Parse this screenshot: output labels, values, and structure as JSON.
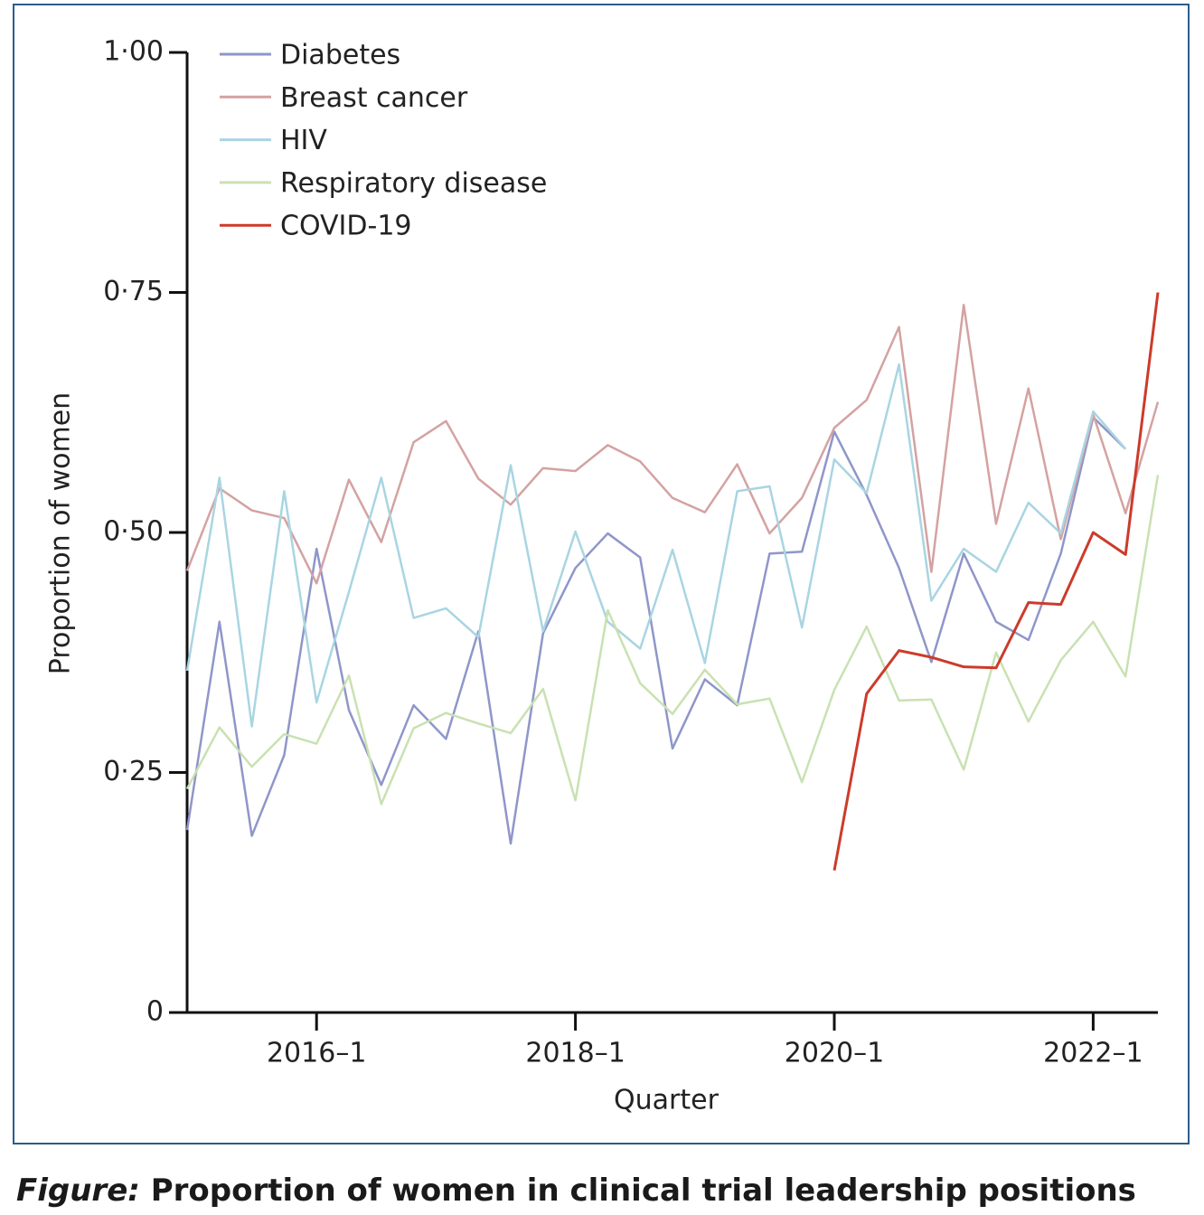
{
  "chart_data": {
    "type": "line",
    "caption_label": "Figure:",
    "caption": "Proportion of women in clinical trial leadership positions",
    "x_label": "Quarter",
    "y_label": "Proportion of women",
    "categories": [
      null,
      null,
      null,
      null,
      "2016–1",
      null,
      null,
      null,
      null,
      null,
      null,
      null,
      "2018–1",
      null,
      null,
      null,
      null,
      null,
      null,
      null,
      "2020–1",
      null,
      null,
      null,
      null,
      null,
      null,
      null,
      "2022–1",
      null,
      null
    ],
    "ylim": [
      0,
      1
    ],
    "yticks": [
      0,
      {
        "value": 0.25,
        "label": "0·25"
      },
      {
        "value": 0.5,
        "label": "0·50"
      },
      {
        "value": 0.75,
        "label": "0·75"
      },
      {
        "value": 1,
        "label": "1·00"
      }
    ],
    "legend": "upper left",
    "series": [
      {
        "name": "Diabetes",
        "color": "#8f96c9",
        "values": [
          0.19,
          0.407,
          0.184,
          0.268,
          0.483,
          0.315,
          0.237,
          0.32,
          0.285,
          0.397,
          0.176,
          0.395,
          0.463,
          0.499,
          0.474,
          0.275,
          0.347,
          0.32,
          0.478,
          0.48,
          0.605,
          0.539,
          0.463,
          0.365,
          0.478,
          0.407,
          0.388,
          0.478,
          0.62,
          0.587,
          null
        ]
      },
      {
        "name": "Breast cancer",
        "color": "#d4a2a2",
        "values": [
          0.46,
          0.546,
          0.523,
          0.515,
          0.447,
          0.555,
          0.49,
          0.594,
          0.616,
          0.556,
          0.529,
          0.567,
          0.564,
          0.591,
          0.574,
          0.536,
          0.521,
          0.571,
          0.499,
          0.536,
          0.609,
          0.638,
          0.714,
          0.459,
          0.737,
          0.509,
          0.65,
          0.493,
          0.623,
          0.52,
          0.636
        ]
      },
      {
        "name": "HIV",
        "color": "#a9d5e2",
        "values": [
          0.356,
          0.557,
          0.298,
          0.543,
          0.323,
          0.438,
          0.557,
          0.411,
          0.421,
          0.391,
          0.57,
          0.397,
          0.501,
          0.407,
          0.379,
          0.482,
          0.364,
          0.543,
          0.548,
          0.401,
          0.576,
          0.541,
          0.675,
          0.429,
          0.483,
          0.459,
          0.531,
          0.499,
          0.626,
          0.587,
          null
        ]
      },
      {
        "name": "Respiratory disease",
        "color": "#c9e1b2",
        "values": [
          0.233,
          0.297,
          0.256,
          0.29,
          0.28,
          0.351,
          0.217,
          0.296,
          0.312,
          0.301,
          0.291,
          0.337,
          0.221,
          0.419,
          0.343,
          0.311,
          0.357,
          0.321,
          0.327,
          0.24,
          0.336,
          0.402,
          0.325,
          0.326,
          0.253,
          0.375,
          0.303,
          0.367,
          0.407,
          0.35,
          0.56
        ]
      },
      {
        "name": "COVID-19",
        "color": "#cc3b2b",
        "values": [
          null,
          null,
          null,
          null,
          null,
          null,
          null,
          null,
          null,
          null,
          null,
          null,
          null,
          null,
          null,
          null,
          null,
          null,
          null,
          null,
          0.148,
          0.332,
          0.377,
          0.37,
          0.36,
          0.359,
          0.427,
          0.425,
          0.5,
          0.477,
          0.75
        ]
      }
    ]
  }
}
